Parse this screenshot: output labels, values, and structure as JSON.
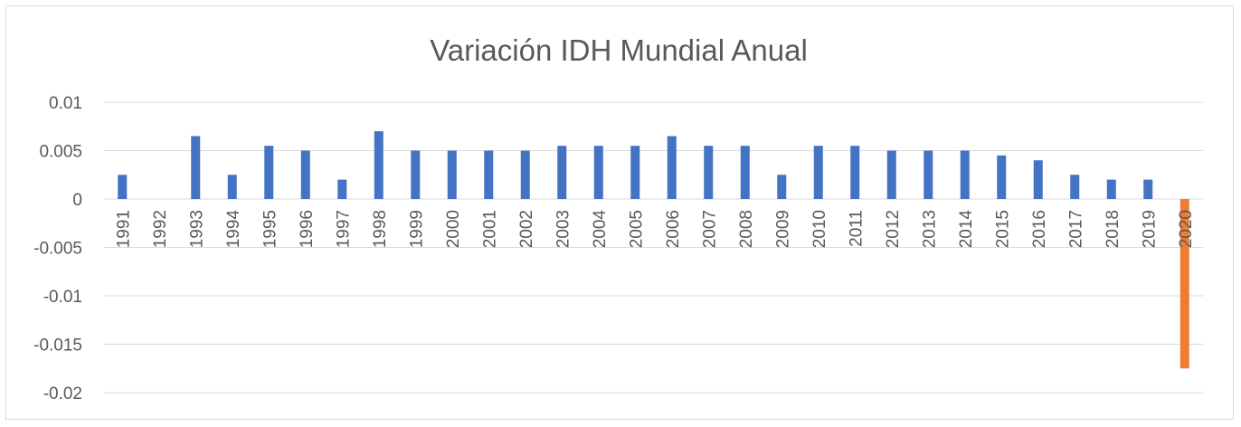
{
  "chart_data": {
    "type": "bar",
    "title": "Variación IDH Mundial Anual",
    "xlabel": "",
    "ylabel": "",
    "ylim": [
      -0.02,
      0.01
    ],
    "yticks": [
      0.01,
      0.005,
      0,
      -0.005,
      -0.01,
      -0.015,
      -0.02
    ],
    "ytick_labels": [
      "0.01",
      "0.005",
      "0",
      "-0.005",
      "-0.01",
      "-0.015",
      "-0.02"
    ],
    "grid": true,
    "legend": "none",
    "categories": [
      "1991",
      "1992",
      "1993",
      "1994",
      "1995",
      "1996",
      "1997",
      "1998",
      "1999",
      "2000",
      "2001",
      "2002",
      "2003",
      "2004",
      "2005",
      "2006",
      "2007",
      "2008",
      "2009",
      "2010",
      "2011",
      "2012",
      "2013",
      "2014",
      "2015",
      "2016",
      "2017",
      "2018",
      "2019",
      "2020"
    ],
    "values": [
      0.0025,
      0,
      0.0065,
      0.0025,
      0.0055,
      0.005,
      0.002,
      0.007,
      0.005,
      0.005,
      0.005,
      0.005,
      0.0055,
      0.0055,
      0.0055,
      0.0065,
      0.0055,
      0.0055,
      0.0025,
      0.0055,
      0.0055,
      0.005,
      0.005,
      0.005,
      0.0045,
      0.004,
      0.0025,
      0.002,
      0.002,
      -0.0175
    ],
    "colors": {
      "positive": "#4472c4",
      "highlight": "#ed7d31"
    },
    "highlight_category": "2020"
  }
}
